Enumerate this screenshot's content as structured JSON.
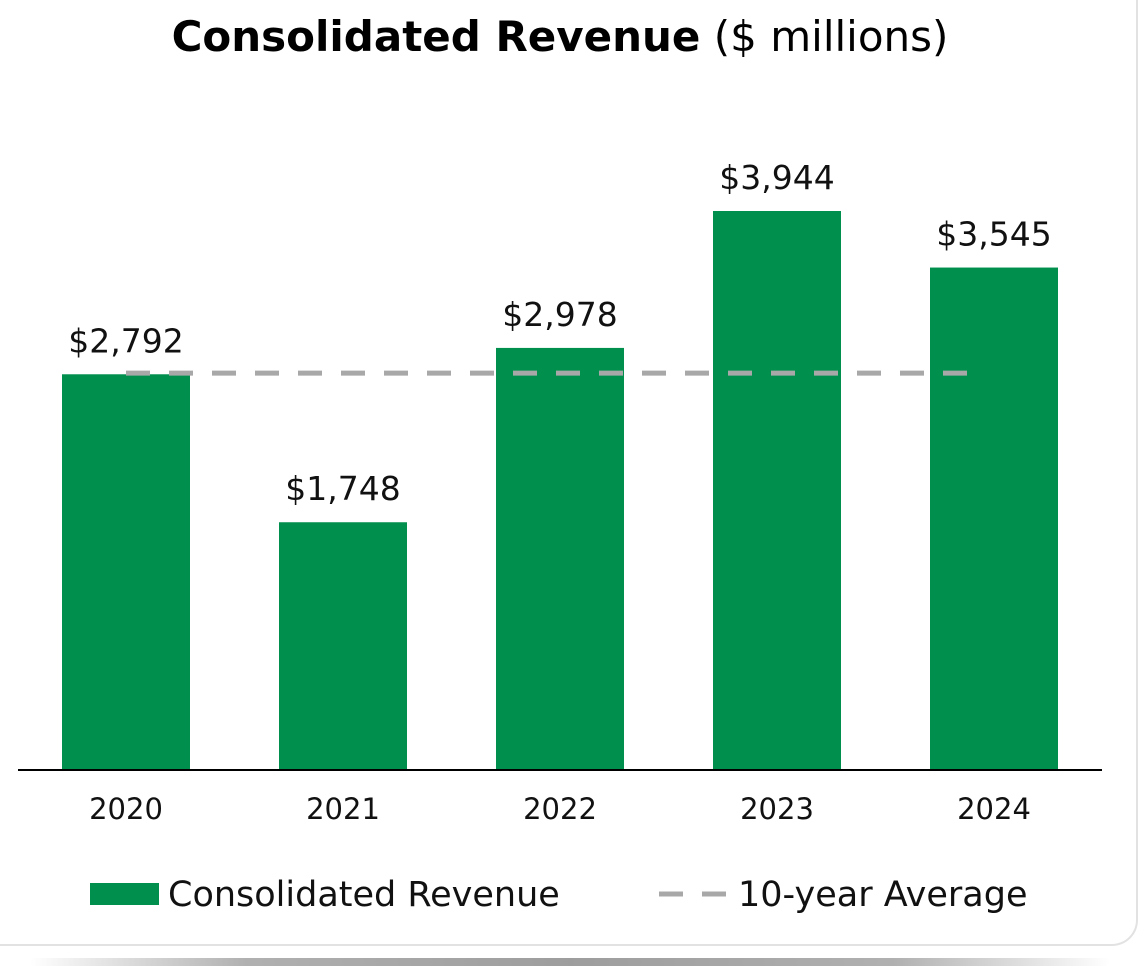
{
  "chart_data": {
    "type": "bar",
    "title": "Consolidated Revenue",
    "title_suffix": "($ millions)",
    "categories": [
      "2020",
      "2021",
      "2022",
      "2023",
      "2024"
    ],
    "series": [
      {
        "name": "Consolidated Revenue",
        "values": [
          2792,
          1748,
          2978,
          3944,
          3545
        ],
        "value_labels": [
          "$2,792",
          "$1,748",
          "$2,978",
          "$3,944",
          "$3,545"
        ],
        "color": "#008f4c"
      }
    ],
    "reference_line": {
      "name": "10-year Average",
      "value": 2800,
      "style": "dashed",
      "color": "#a8a8a8"
    },
    "ylim": [
      0,
      4200
    ],
    "grid": false,
    "legend": "bottom"
  }
}
